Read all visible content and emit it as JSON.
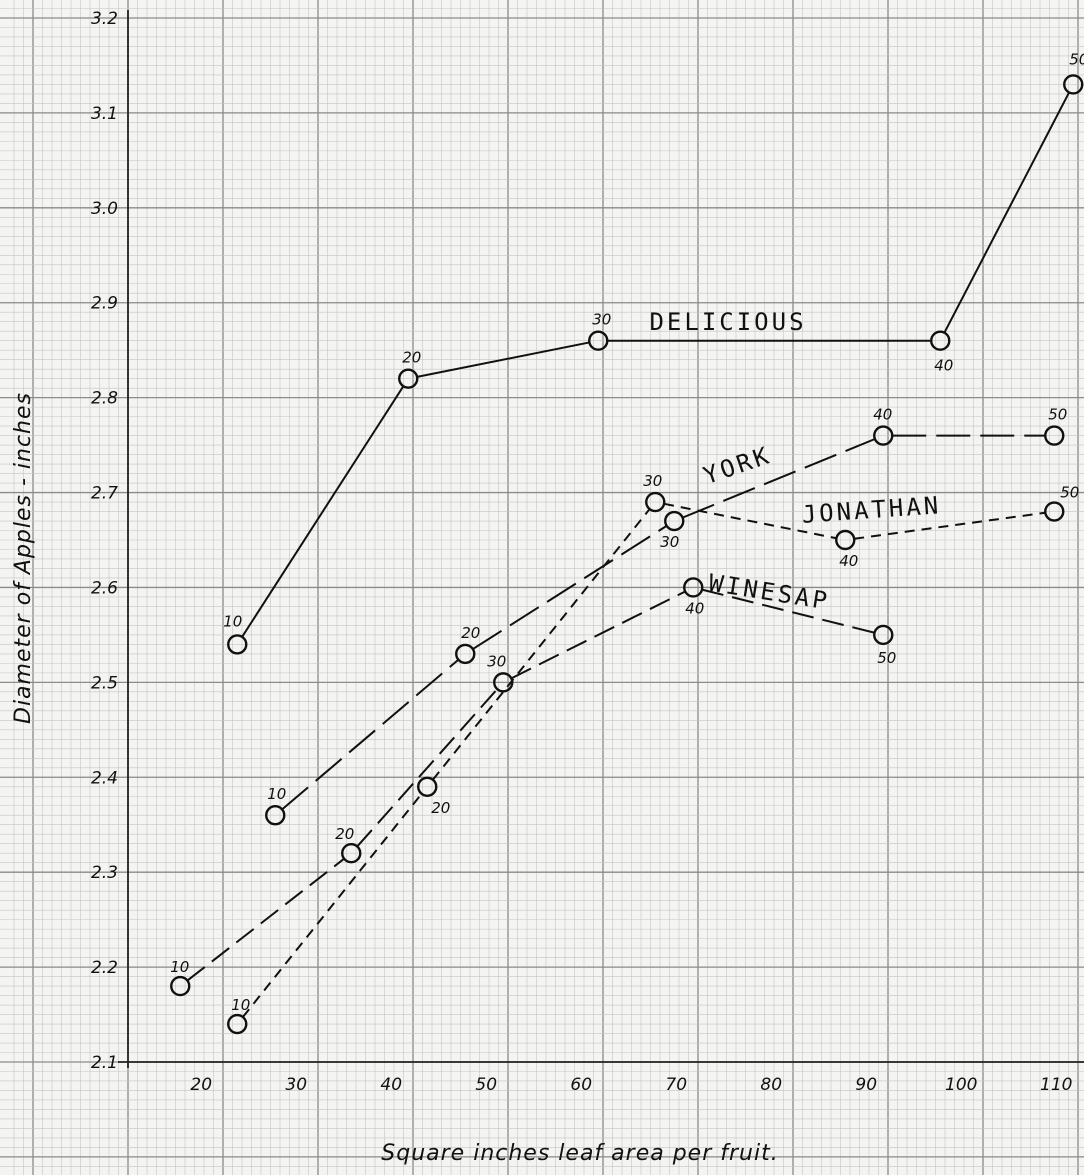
{
  "chart_data": {
    "type": "line",
    "title": "",
    "xlabel": "Square inches leaf area per fruit.",
    "ylabel": "Diameter of Apples - inches",
    "xlim": [
      10,
      115
    ],
    "ylim": [
      2.1,
      3.2
    ],
    "x_ticks": [
      "20",
      "30",
      "40",
      "50",
      "60",
      "70",
      "80",
      "90",
      "100",
      "110"
    ],
    "y_ticks": [
      "2.1",
      "2.2",
      "2.3",
      "2.4",
      "2.5",
      "2.6",
      "2.7",
      "2.8",
      "2.9",
      "3.0",
      "3.1",
      "3.2"
    ],
    "grid": true,
    "series": [
      {
        "name": "DELICIOUS",
        "line_style": "solid",
        "points": [
          {
            "x": 24,
            "y": 2.54,
            "label": "10"
          },
          {
            "x": 42,
            "y": 2.82,
            "label": "20"
          },
          {
            "x": 62,
            "y": 2.86,
            "label": "30"
          },
          {
            "x": 98,
            "y": 2.86,
            "label": "40"
          },
          {
            "x": 112,
            "y": 3.13,
            "label": "50"
          }
        ]
      },
      {
        "name": "YORK",
        "line_style": "long-dash",
        "points": [
          {
            "x": 28,
            "y": 2.36,
            "label": "10"
          },
          {
            "x": 48,
            "y": 2.53,
            "label": "20"
          },
          {
            "x": 70,
            "y": 2.67,
            "label": "30"
          },
          {
            "x": 92,
            "y": 2.76,
            "label": "40"
          },
          {
            "x": 110,
            "y": 2.76,
            "label": "50"
          }
        ]
      },
      {
        "name": "JONATHAN",
        "line_style": "short-dash",
        "points": [
          {
            "x": 24,
            "y": 2.14,
            "label": "10"
          },
          {
            "x": 44,
            "y": 2.39,
            "label": "20"
          },
          {
            "x": 68,
            "y": 2.69,
            "label": "30"
          },
          {
            "x": 88,
            "y": 2.65,
            "label": "40"
          },
          {
            "x": 110,
            "y": 2.68,
            "label": "50"
          }
        ]
      },
      {
        "name": "WINESAP",
        "line_style": "dash",
        "points": [
          {
            "x": 18,
            "y": 2.18,
            "label": "10"
          },
          {
            "x": 36,
            "y": 2.32,
            "label": "20"
          },
          {
            "x": 52,
            "y": 2.5,
            "label": "30"
          },
          {
            "x": 72,
            "y": 2.6,
            "label": "40"
          },
          {
            "x": 92,
            "y": 2.55,
            "label": "50"
          }
        ]
      }
    ]
  }
}
